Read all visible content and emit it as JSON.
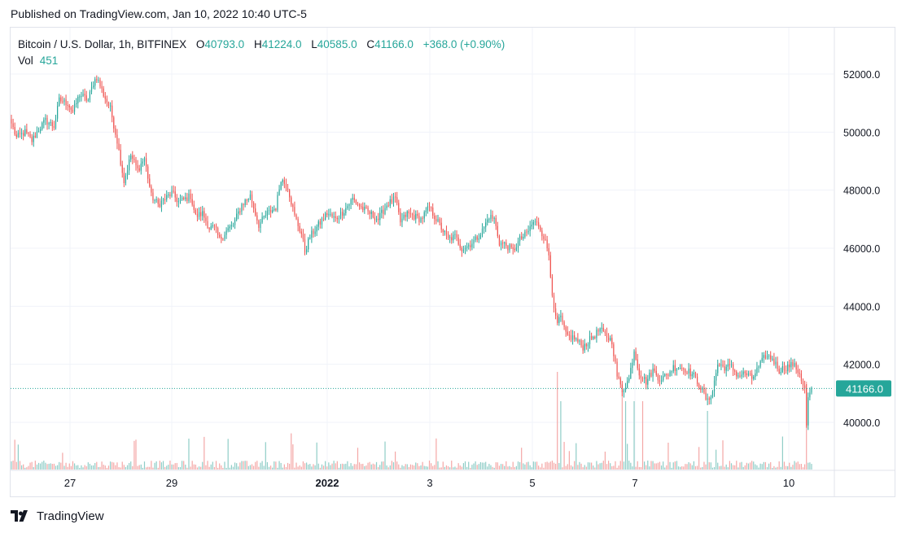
{
  "header": {
    "published": "Published on TradingView.com, Jan 10, 2022 10:40 UTC-5"
  },
  "legend": {
    "symbol": "Bitcoin / U.S. Dollar, 1h, BITFINEX",
    "open_label": "O",
    "open": "40793.0",
    "high_label": "H",
    "high": "41224.0",
    "low_label": "L",
    "low": "40585.0",
    "close_label": "C",
    "close": "41166.0",
    "change": "+368.0 (+0.90%)",
    "vol_label": "Vol",
    "vol": "451"
  },
  "footer": {
    "brand": "TradingView"
  },
  "colors": {
    "up": "#26a69a",
    "down": "#ef5350",
    "up_volume": "#8fcdc7",
    "down_volume": "#f4a7a6",
    "grid": "#f0f3fa",
    "text": "#131722"
  },
  "chart_data": {
    "type": "candlestick",
    "interval": "1h",
    "price_axis": {
      "ticks": [
        40000,
        42000,
        44000,
        46000,
        48000,
        50000,
        52000
      ],
      "labels": [
        "40000.0",
        "42000.0",
        "44000.0",
        "46000.0",
        "48000.0",
        "50000.0",
        "52000.0"
      ],
      "range": [
        38500,
        53300
      ]
    },
    "last_price": {
      "value": 41166,
      "label": "41166.0"
    },
    "time_axis": {
      "labels": [
        {
          "text": "27",
          "bold": false
        },
        {
          "text": "29",
          "bold": false
        },
        {
          "text": "2022",
          "bold": true
        },
        {
          "text": "3",
          "bold": false
        },
        {
          "text": "5",
          "bold": false
        },
        {
          "text": "7",
          "bold": false
        },
        {
          "text": "10",
          "bold": false
        }
      ]
    },
    "anchors": [
      [
        0,
        50300
      ],
      [
        3,
        49800
      ],
      [
        8,
        50000
      ],
      [
        12,
        49700
      ],
      [
        16,
        50100
      ],
      [
        20,
        50400
      ],
      [
        25,
        50200
      ],
      [
        28,
        51100
      ],
      [
        33,
        51000
      ],
      [
        36,
        50700
      ],
      [
        40,
        51300
      ],
      [
        45,
        51100
      ],
      [
        48,
        51700
      ],
      [
        50,
        51900
      ],
      [
        54,
        51300
      ],
      [
        58,
        50800
      ],
      [
        62,
        49700
      ],
      [
        66,
        48300
      ],
      [
        70,
        49200
      ],
      [
        74,
        48700
      ],
      [
        78,
        49100
      ],
      [
        82,
        47800
      ],
      [
        86,
        47500
      ],
      [
        90,
        47700
      ],
      [
        94,
        47900
      ],
      [
        98,
        47600
      ],
      [
        102,
        47700
      ],
      [
        105,
        47800
      ],
      [
        108,
        47100
      ],
      [
        112,
        47200
      ],
      [
        116,
        46700
      ],
      [
        119,
        46700
      ],
      [
        122,
        46300
      ],
      [
        126,
        46600
      ],
      [
        130,
        46800
      ],
      [
        135,
        47500
      ],
      [
        140,
        47800
      ],
      [
        145,
        46800
      ],
      [
        150,
        47200
      ],
      [
        155,
        47400
      ],
      [
        158,
        48400
      ],
      [
        162,
        48100
      ],
      [
        166,
        47100
      ],
      [
        170,
        46500
      ],
      [
        172,
        45900
      ],
      [
        175,
        46400
      ],
      [
        180,
        46800
      ],
      [
        185,
        47200
      ],
      [
        190,
        47000
      ],
      [
        195,
        47300
      ],
      [
        200,
        47700
      ],
      [
        205,
        47400
      ],
      [
        210,
        47200
      ],
      [
        215,
        47000
      ],
      [
        220,
        47500
      ],
      [
        225,
        47700
      ],
      [
        228,
        46900
      ],
      [
        232,
        47200
      ],
      [
        236,
        47100
      ],
      [
        240,
        47000
      ],
      [
        245,
        47400
      ],
      [
        248,
        47100
      ],
      [
        252,
        46700
      ],
      [
        256,
        46300
      ],
      [
        260,
        46400
      ],
      [
        264,
        46000
      ],
      [
        268,
        46100
      ],
      [
        272,
        46300
      ],
      [
        276,
        46600
      ],
      [
        280,
        47100
      ],
      [
        283,
        47000
      ],
      [
        286,
        46200
      ],
      [
        290,
        46100
      ],
      [
        294,
        45900
      ],
      [
        298,
        46300
      ],
      [
        302,
        46500
      ],
      [
        306,
        46900
      ],
      [
        309,
        46800
      ],
      [
        312,
        46400
      ],
      [
        315,
        45800
      ],
      [
        318,
        43800
      ],
      [
        320,
        43400
      ],
      [
        322,
        43600
      ],
      [
        325,
        43000
      ],
      [
        330,
        42900
      ],
      [
        335,
        42600
      ],
      [
        340,
        42900
      ],
      [
        345,
        43200
      ],
      [
        348,
        43000
      ],
      [
        352,
        42800
      ],
      [
        355,
        41600
      ],
      [
        358,
        41100
      ],
      [
        362,
        41500
      ],
      [
        365,
        42500
      ],
      [
        368,
        41700
      ],
      [
        372,
        41400
      ],
      [
        376,
        41800
      ],
      [
        380,
        41500
      ],
      [
        384,
        41600
      ],
      [
        388,
        41900
      ],
      [
        392,
        41900
      ],
      [
        396,
        41800
      ],
      [
        400,
        41600
      ],
      [
        404,
        41200
      ],
      [
        408,
        40700
      ],
      [
        411,
        41100
      ],
      [
        414,
        42000
      ],
      [
        418,
        41900
      ],
      [
        422,
        41900
      ],
      [
        426,
        41600
      ],
      [
        430,
        41700
      ],
      [
        434,
        41500
      ],
      [
        438,
        41900
      ],
      [
        442,
        42300
      ],
      [
        446,
        42200
      ],
      [
        450,
        41800
      ],
      [
        454,
        41900
      ],
      [
        458,
        42000
      ],
      [
        462,
        41700
      ],
      [
        465,
        41100
      ],
      [
        466,
        39900
      ],
      [
        467,
        40800
      ],
      [
        469,
        41166
      ]
    ],
    "volume_spikes": [
      [
        320,
        10
      ],
      [
        322,
        7
      ],
      [
        358,
        8
      ],
      [
        360,
        7
      ],
      [
        365,
        7
      ],
      [
        370,
        7
      ],
      [
        408,
        6
      ],
      [
        466,
        9
      ]
    ]
  }
}
